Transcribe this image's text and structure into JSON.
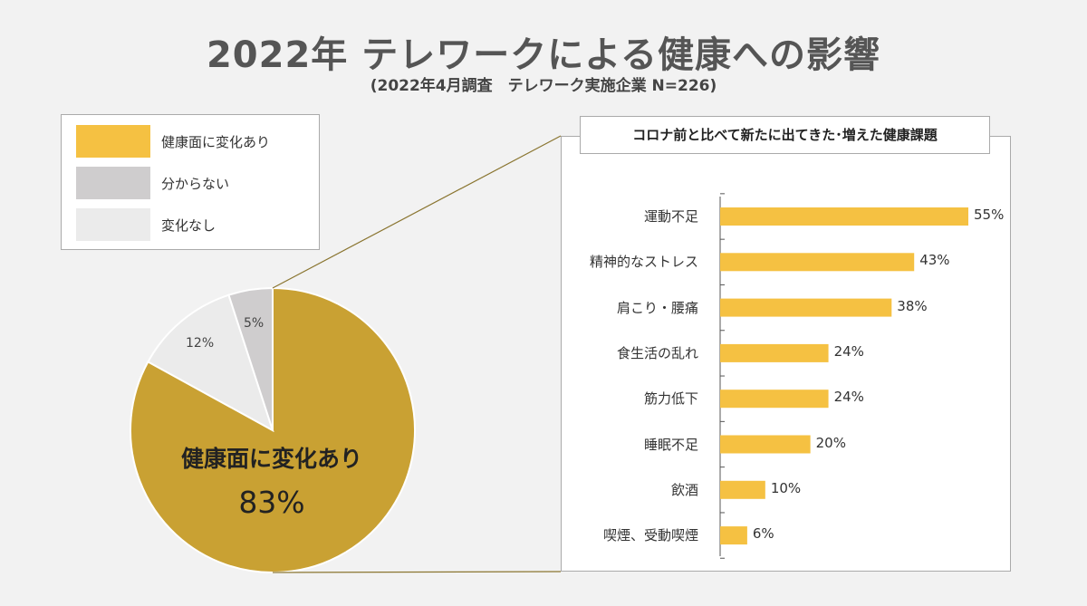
{
  "title": "2022年 テレワークによる健康への影響",
  "subtitle": "(2022年4月調査　テレワーク実施企業 N=226)",
  "colors": {
    "change": "#f5c142",
    "pie_change": "#c9a133",
    "unknown": "#cfcdce",
    "nochange": "#ebebeb",
    "bar": "#f5c142",
    "connector": "#8a7530"
  },
  "legend": [
    {
      "label": "健康面に変化あり",
      "color": "#f5c142"
    },
    {
      "label": "分からない",
      "color": "#cfcdce"
    },
    {
      "label": "変化なし",
      "color": "#ebebeb"
    }
  ],
  "pie_labels": {
    "change_name": "健康面に変化あり",
    "change_value": "83%",
    "nochange_value": "12%",
    "unknown_value": "5%"
  },
  "panel_title": "コロナ前と比べて新たに出てきた･増えた健康課題",
  "chart_data": [
    {
      "type": "pie",
      "title": "",
      "slices": [
        {
          "label": "健康面に変化あり",
          "value": 83,
          "color": "#c9a133"
        },
        {
          "label": "変化なし",
          "value": 12,
          "color": "#ebebeb"
        },
        {
          "label": "分からない",
          "value": 5,
          "color": "#cfcdce"
        }
      ]
    },
    {
      "type": "bar",
      "orientation": "horizontal",
      "title": "コロナ前と比べて新たに出てきた･増えた健康課題",
      "categories": [
        "運動不足",
        "精神的なストレス",
        "肩こり・腰痛",
        "食生活の乱れ",
        "筋力低下",
        "睡眠不足",
        "飲酒",
        "喫煙、受動喫煙"
      ],
      "values": [
        55,
        43,
        38,
        24,
        24,
        20,
        10,
        6
      ],
      "value_labels": [
        "55%",
        "43%",
        "38%",
        "24%",
        "24%",
        "20%",
        "10%",
        "6%"
      ],
      "unit": "%",
      "xlim": [
        0,
        55
      ],
      "grid": false
    }
  ]
}
